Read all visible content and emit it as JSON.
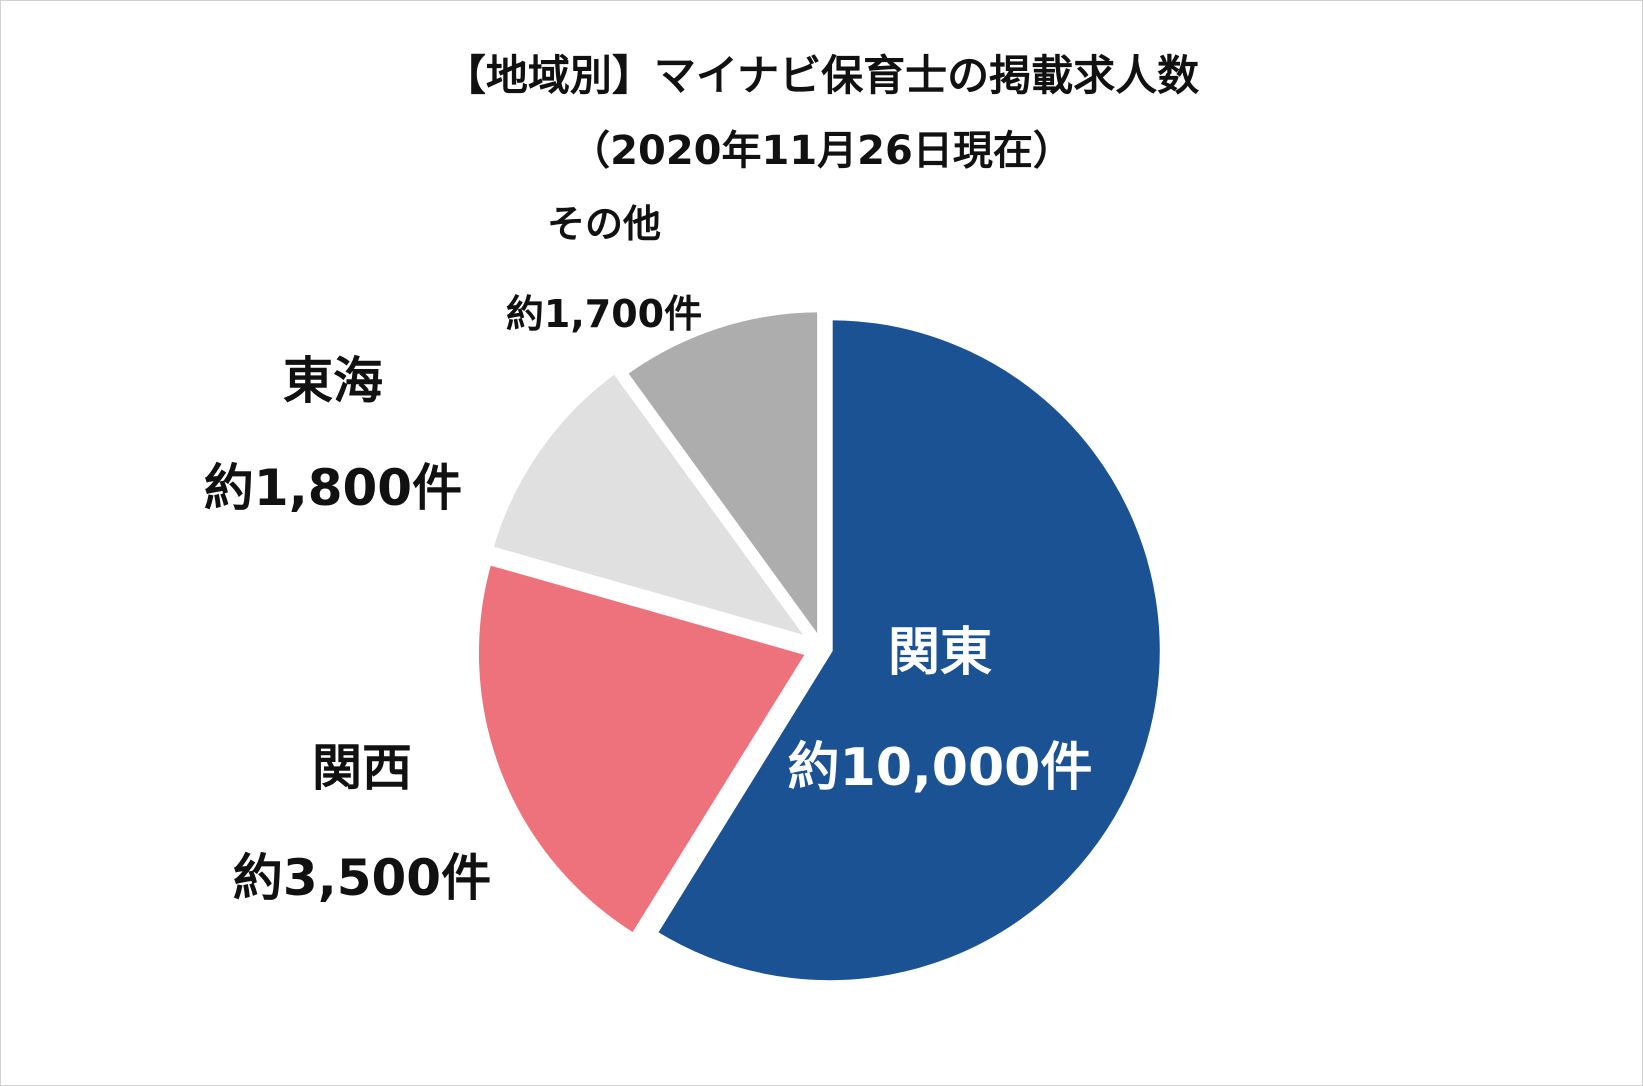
{
  "chart_data": {
    "type": "pie",
    "title": "【地域別】マイナビ保育士の掲載求人数",
    "subtitle": "（2020年11月26日現在）",
    "categories": [
      "関東",
      "関西",
      "東海",
      "その他"
    ],
    "values": [
      10000,
      3500,
      1800,
      1700
    ],
    "value_labels": [
      "約10,000件",
      "約3,500件",
      "約1,800件",
      "約1,700件"
    ],
    "colors": [
      "#1b5294",
      "#ee727c",
      "#e0e0e0",
      "#adadad"
    ],
    "label_colors": [
      "#ffffff",
      "#111111",
      "#111111",
      "#111111"
    ],
    "start": "12 o'clock",
    "direction": "clockwise",
    "legend": "none"
  }
}
